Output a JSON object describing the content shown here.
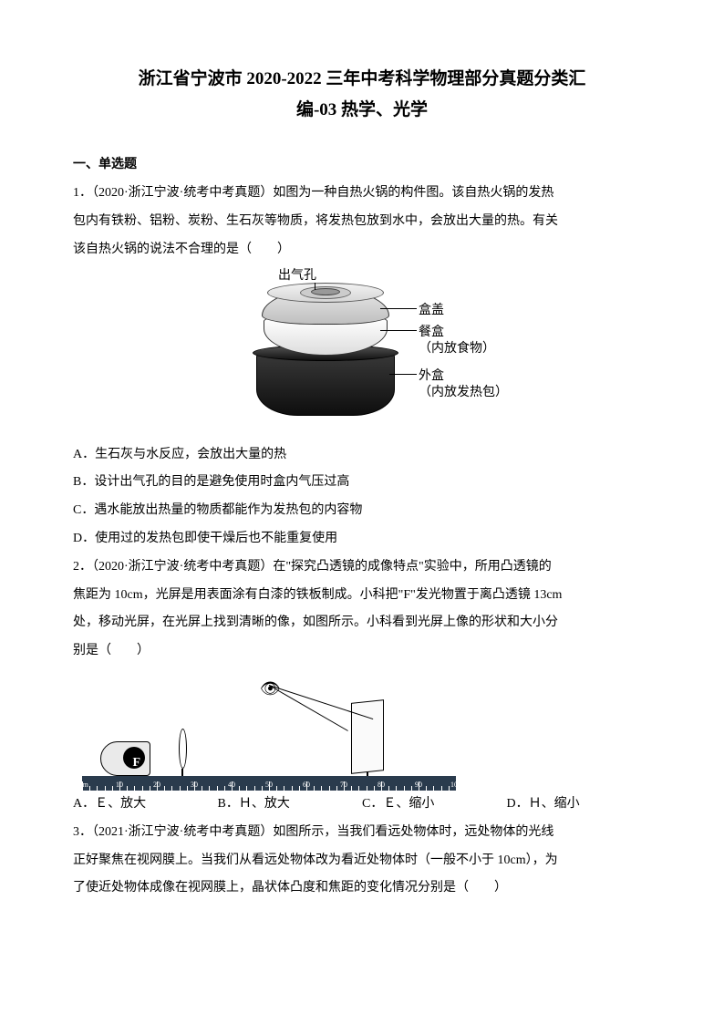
{
  "title_main": "浙江省宁波市 2020-2022 三年中考科学物理部分真题分类汇",
  "title_sub": "编-03 热学、光学",
  "section1": "一、单选题",
  "q1_l1": "1．（2020·浙江宁波·统考中考真题）如图为一种自热火锅的构件图。该自热火锅的发热",
  "q1_l2": "包内有铁粉、铝粉、炭粉、生石灰等物质，将发热包放到水中，会放出大量的热。有关",
  "q1_l3": "该自热火锅的说法不合理的是（　　）",
  "hotpot": {
    "label_vent": "出气孔",
    "label_lid": "盒盖",
    "label_bowl": "餐盒",
    "label_bowl_sub": "（内放食物）",
    "label_outer": "外盒",
    "label_outer_sub": "（内放发热包）"
  },
  "q1_optA": "A．生石灰与水反应，会放出大量的热",
  "q1_optB": "B．设计出气孔的目的是避免使用时盒内气压过高",
  "q1_optC": "C．遇水能放出热量的物质都能作为发热包的内容物",
  "q1_optD": "D．使用过的发热包即使干燥后也不能重复使用",
  "q2_l1": "2．（2020·浙江宁波·统考中考真题）在\"探究凸透镜的成像特点\"实验中，所用凸透镜的",
  "q2_l2": "焦距为 10cm，光屏是用表面涂有白漆的铁板制成。小科把\"F\"发光物置于离凸透镜 13cm",
  "q2_l3": "处，移动光屏，在光屏上找到清晰的像，如图所示。小科看到光屏上像的形状和大小分",
  "q2_l4": "别是（　　）",
  "ruler": {
    "ticks": [
      "0cm",
      "10",
      "20",
      "30",
      "40",
      "50",
      "60",
      "70",
      "80",
      "90",
      "100"
    ]
  },
  "q2_optA": "A．Ｅ、放大",
  "q2_optB": "B．Ｈ、放大",
  "q2_optC": "C．Ｅ、缩小",
  "q2_optD": "D．Ｈ、缩小",
  "q3_l1": "3．（2021·浙江宁波·统考中考真题）如图所示，当我们看远处物体时，远处物体的光线",
  "q3_l2": "正好聚焦在视网膜上。当我们从看远处物体改为看近处物体时（一般不小于 10cm），为",
  "q3_l3": "了使近处物体成像在视网膜上，晶状体凸度和焦距的变化情况分别是（　　）"
}
